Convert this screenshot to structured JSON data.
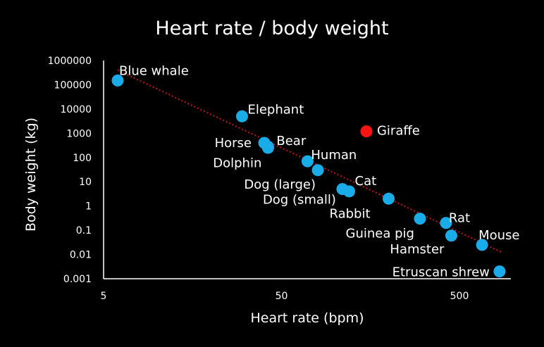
{
  "chart_data": {
    "type": "scatter",
    "title": "Heart rate / body weight",
    "xlabel": "Heart rate (bpm)",
    "ylabel": "Body weight (kg)",
    "x_scale": "log",
    "y_scale": "log",
    "xlim": [
      5,
      1000
    ],
    "ylim": [
      0.001,
      1000000
    ],
    "x_ticks": [
      "5",
      "50",
      "500"
    ],
    "y_ticks": [
      "0.001",
      "0.01",
      "0.1",
      "1",
      "10",
      "100",
      "1000",
      "10000",
      "100000",
      "1000000"
    ],
    "grid": false,
    "legend": "none",
    "colors": {
      "point": "#1aace8",
      "highlight": "#ff1414",
      "trendline": "#b3121e",
      "background": "#000000",
      "text": "#ffffff"
    },
    "trendline": {
      "style": "dotted",
      "start": {
        "x": 6,
        "y": 400000
      },
      "end": {
        "x": 870,
        "y": 0.012
      }
    },
    "points": [
      {
        "label": "Blue whale",
        "x": 6,
        "y": 150000
      },
      {
        "label": "Elephant",
        "x": 30,
        "y": 5000
      },
      {
        "label": "Horse",
        "x": 40,
        "y": 400
      },
      {
        "label": "Bear",
        "x": 42,
        "y": 250
      },
      {
        "label": "Dolphin",
        "x": 42,
        "y": 280
      },
      {
        "label": "Human",
        "x": 70,
        "y": 70
      },
      {
        "label": "Dog (large)",
        "x": 80,
        "y": 30
      },
      {
        "label": "Dog (small)",
        "x": 110,
        "y": 5
      },
      {
        "label": "Cat",
        "x": 120,
        "y": 4
      },
      {
        "label": "Giraffe",
        "x": 150,
        "y": 1200,
        "highlight": true
      },
      {
        "label": "Rabbit",
        "x": 200,
        "y": 2
      },
      {
        "label": "Guinea pig",
        "x": 300,
        "y": 0.3
      },
      {
        "label": "Rat",
        "x": 420,
        "y": 0.2
      },
      {
        "label": "Hamster",
        "x": 450,
        "y": 0.06
      },
      {
        "label": "Mouse",
        "x": 670,
        "y": 0.025
      },
      {
        "label": "Etruscan shrew",
        "x": 840,
        "y": 0.002
      }
    ]
  }
}
